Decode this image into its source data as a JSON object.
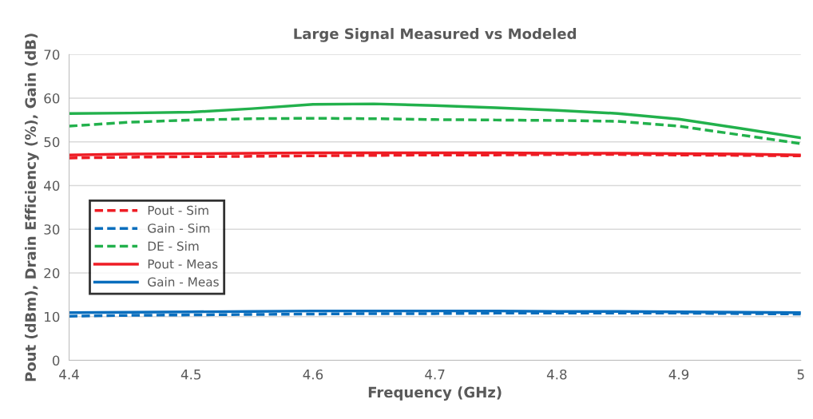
{
  "chart_data": {
    "type": "line",
    "title": "Large Signal Measured vs Modeled",
    "xlabel": "Frequency (GHz)",
    "ylabel": "Pout (dBm), Drain Efficiency (%), Gain (dB)",
    "x": [
      4.4,
      4.45,
      4.5,
      4.55,
      4.6,
      4.65,
      4.7,
      4.75,
      4.8,
      4.85,
      4.9,
      4.95,
      5.0
    ],
    "series": [
      {
        "name": "Pout - Sim",
        "color": "#ee1c24",
        "line_style": "dashed",
        "values": [
          46.3,
          46.5,
          46.6,
          46.7,
          46.8,
          46.9,
          47.0,
          47.0,
          47.1,
          47.1,
          47.0,
          46.9,
          46.8
        ]
      },
      {
        "name": "Gain - Sim",
        "color": "#0a6ebd",
        "line_style": "dashed",
        "values": [
          10.1,
          10.3,
          10.4,
          10.5,
          10.6,
          10.7,
          10.7,
          10.8,
          10.8,
          10.8,
          10.8,
          10.7,
          10.6
        ]
      },
      {
        "name": "DE - Sim",
        "color": "#22b14c",
        "line_style": "dashed",
        "values": [
          53.6,
          54.5,
          55.0,
          55.3,
          55.4,
          55.3,
          55.1,
          55.0,
          54.9,
          54.7,
          53.6,
          51.6,
          49.6
        ]
      },
      {
        "name": "Pout - Meas",
        "color": "#ee1c24",
        "line_style": "solid",
        "values": [
          47.0,
          47.2,
          47.3,
          47.4,
          47.5,
          47.5,
          47.5,
          47.5,
          47.4,
          47.4,
          47.3,
          47.2,
          47.0
        ]
      },
      {
        "name": "Gain - Meas",
        "color": "#0a6ebd",
        "line_style": "solid",
        "values": [
          10.9,
          11.0,
          11.1,
          11.2,
          11.3,
          11.3,
          11.3,
          11.3,
          11.2,
          11.2,
          11.1,
          11.0,
          10.9
        ]
      },
      {
        "color": "#22b14c",
        "line_style": "solid",
        "values": [
          56.5,
          56.6,
          56.8,
          57.6,
          58.6,
          58.7,
          58.3,
          57.8,
          57.2,
          56.5,
          55.2,
          53.1,
          50.9
        ]
      }
    ],
    "xlim": [
      4.4,
      5.0
    ],
    "xticks": [
      4.4,
      4.5,
      4.6,
      4.7,
      4.8,
      4.9,
      5
    ],
    "ylim": [
      0,
      70
    ],
    "yticks": [
      0,
      10,
      20,
      30,
      40,
      50,
      60,
      70
    ],
    "grid": "y",
    "legend": "left",
    "marker": "none"
  }
}
